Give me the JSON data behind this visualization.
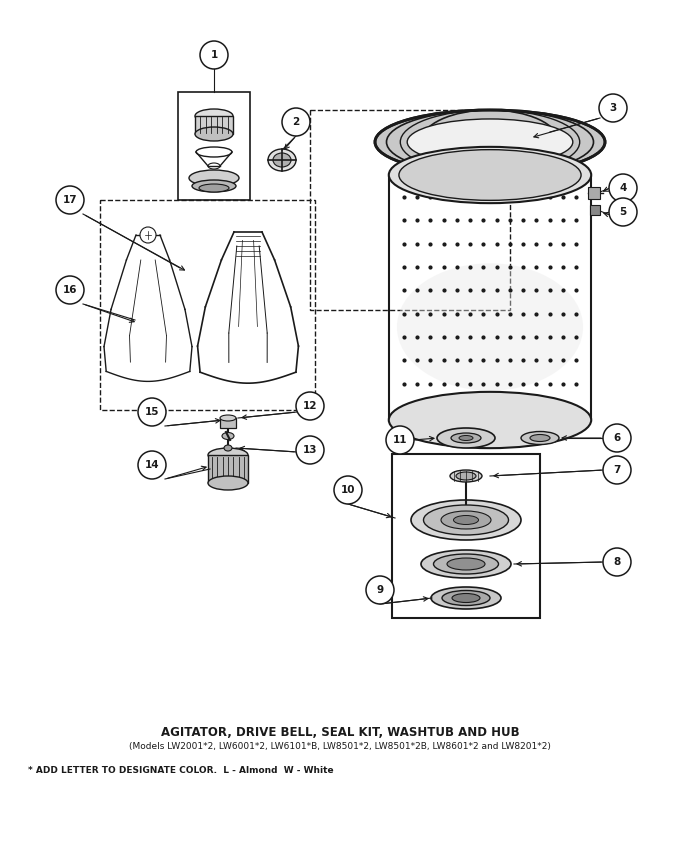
{
  "title": "AGITATOR, DRIVE BELL, SEAL KIT, WASHTUB AND HUB",
  "subtitle": "(Models LW2001*2, LW6001*2, LW6101*B, LW8501*2, LW8501*2B, LW8601*2 and LW8201*2)",
  "footnote": "* ADD LETTER TO DESIGNATE COLOR.  L - Almond  W - White",
  "bg_color": "#ffffff",
  "line_color": "#1a1a1a",
  "fig_width": 6.8,
  "fig_height": 8.56,
  "dpi": 100,
  "xlim": [
    0,
    680
  ],
  "ylim": [
    0,
    856
  ]
}
